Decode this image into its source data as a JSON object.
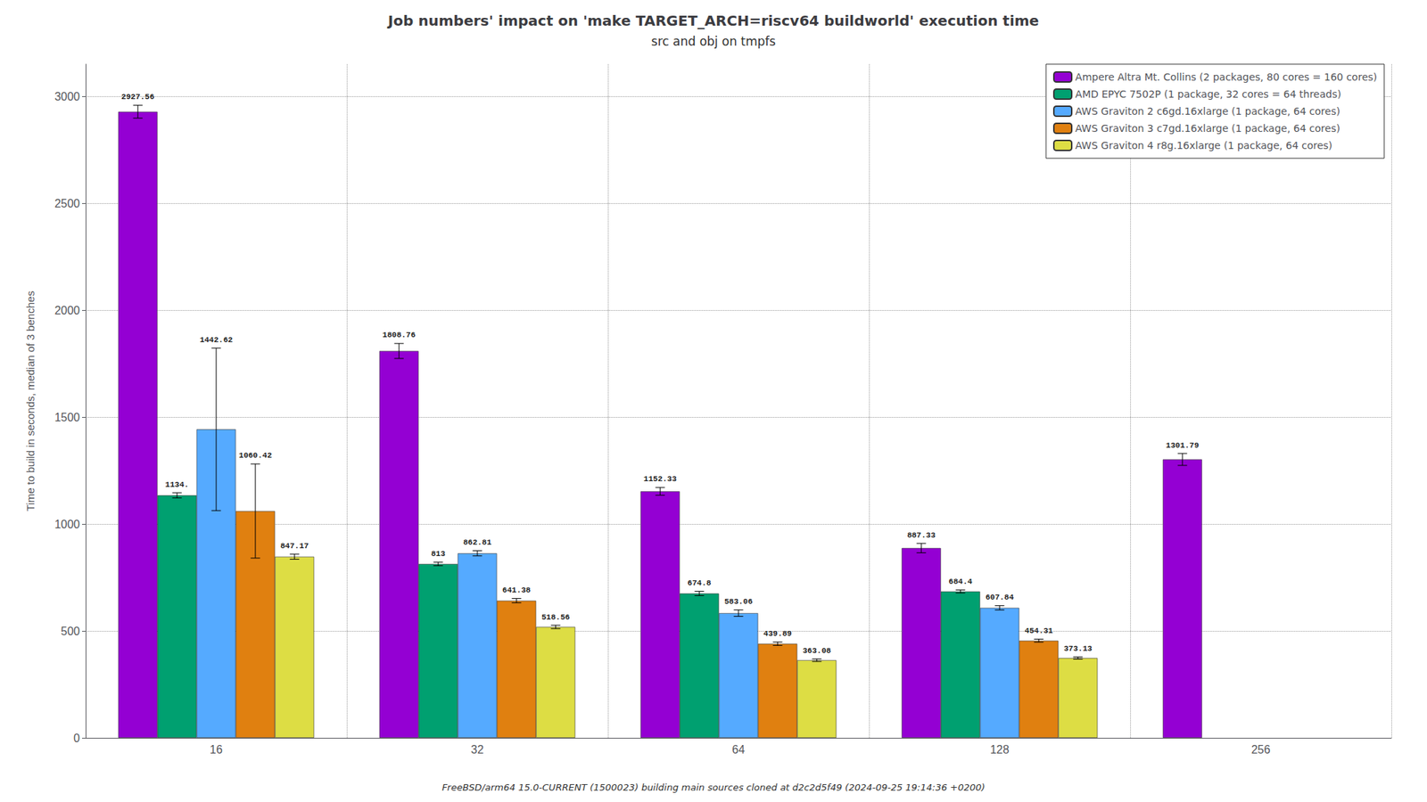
{
  "chart_data": {
    "type": "bar",
    "title": "Job numbers' impact on 'make TARGET_ARCH=riscv64 buildworld' execution time",
    "subtitle": "src and obj on tmpfs",
    "ylabel": "Time to build in seconds, median of 3 benches",
    "annotations": [
      "FreeBSD/arm64 15.0-CURRENT (1500023) building main sources cloned at d2c2d5f49 (2024-09-25 19:14:36 +0200)"
    ],
    "categories": [
      "16",
      "32",
      "64",
      "128",
      "256"
    ],
    "series": [
      {
        "name": "Ampere Altra Mt. Collins (2 packages, 80 cores = 160 cores)",
        "color": "#9400D3",
        "values": [
          2927.56,
          1808.76,
          1152.33,
          887.33,
          1301.79
        ],
        "errors": [
          30,
          35,
          18,
          22,
          28
        ],
        "value_labels": [
          "2927.56",
          "1808.76",
          "1152.33",
          "887.33",
          "1301.79"
        ]
      },
      {
        "name": "AMD EPYC 7502P (1 package, 32 cores = 64 threads)",
        "color": "#00A070",
        "values": [
          1134.0,
          813.0,
          674.8,
          684.4,
          null
        ],
        "errors": [
          12,
          8,
          10,
          7,
          null
        ],
        "value_labels": [
          "1134.",
          "813",
          "674.8",
          "684.4",
          null
        ]
      },
      {
        "name": "AWS Graviton 2 c6gd.16xlarge (1 package, 64 cores)",
        "color": "#55AAFF",
        "values": [
          1442.62,
          862.81,
          583.06,
          607.84,
          null
        ],
        "errors": [
          380,
          12,
          15,
          10,
          null
        ],
        "value_labels": [
          "1442.62",
          "862.81",
          "583.06",
          "607.84",
          null
        ]
      },
      {
        "name": "AWS Graviton 3 c7gd.16xlarge (1 package, 64 cores)",
        "color": "#E08010",
        "values": [
          1060.42,
          641.38,
          439.89,
          454.31,
          null
        ],
        "errors": [
          220,
          10,
          8,
          7,
          null
        ],
        "value_labels": [
          "1060.42",
          "641.38",
          "439.89",
          "454.31",
          null
        ]
      },
      {
        "name": "AWS Graviton 4 r8g.16xlarge (1 package, 64 cores)",
        "color": "#DDDD44",
        "values": [
          847.17,
          518.56,
          363.08,
          373.13,
          null
        ],
        "errors": [
          12,
          8,
          6,
          5,
          null
        ],
        "value_labels": [
          "847.17",
          "518.56",
          "363.08",
          "373.13",
          null
        ]
      }
    ],
    "ylim": [
      0,
      3150
    ],
    "yticks": [
      0,
      500,
      1000,
      1500,
      2000,
      2500,
      3000
    ],
    "grid": true,
    "legend": "upper right",
    "data_labels": true
  }
}
